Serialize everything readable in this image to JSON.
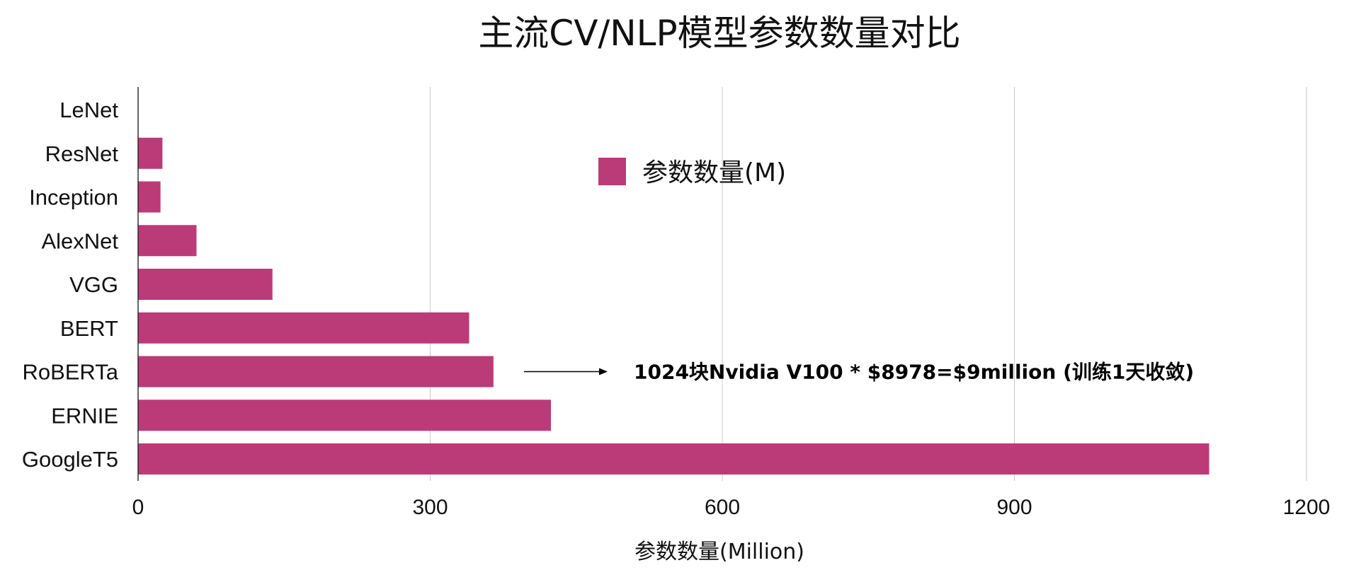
{
  "chart_data": {
    "type": "bar",
    "orientation": "horizontal",
    "title": "主流CV/NLP模型参数数量对比",
    "xlabel": "参数数量(Million)",
    "ylabel": "",
    "categories": [
      "LeNet",
      "ResNet",
      "Inception",
      "AlexNet",
      "VGG",
      "BERT",
      "RoBERTa",
      "ERNIE",
      "GoogleT5"
    ],
    "series": [
      {
        "name": "参数数量(M)",
        "values": [
          0.06,
          25,
          23,
          60,
          138,
          340,
          365,
          424,
          1100
        ],
        "color": "#bb3b78"
      }
    ],
    "xlim": [
      0,
      1200
    ],
    "xticks": [
      "0",
      "300",
      "600",
      "900",
      "1200"
    ],
    "grid": true,
    "legend_position": "top-center",
    "annotation": {
      "text": "1024块Nvidia V100 * $8978=$9million (训练1天收敛)",
      "target_category": "RoBERTa"
    }
  }
}
